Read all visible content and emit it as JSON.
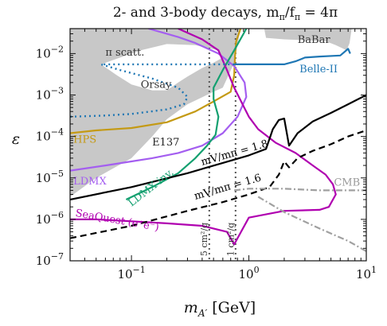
{
  "chart_data": {
    "type": "line",
    "title": "2- and 3-body decays, m",
    "title_sub": "π",
    "title_mid": "/f",
    "title_sub2": "π",
    "title_end": " = 4π",
    "xlabel": "m",
    "xlabel_sub": "A′",
    "xlabel_unit": " [GeV]",
    "ylabel": "ε",
    "x_scale": "log",
    "y_scale": "log",
    "xlim": [
      0.03,
      10
    ],
    "ylim": [
      1e-07,
      0.04
    ],
    "grid": false,
    "x_ticks": [
      {
        "value": 0.1,
        "base": "10",
        "exp": "−1"
      },
      {
        "value": 1,
        "base": "10",
        "exp": "0"
      },
      {
        "value": 10,
        "base": "10",
        "exp": "1"
      }
    ],
    "y_ticks": [
      {
        "value": 1e-07,
        "base": "10",
        "exp": "−7"
      },
      {
        "value": 1e-06,
        "base": "10",
        "exp": "−6"
      },
      {
        "value": 1e-05,
        "base": "10",
        "exp": "−5"
      },
      {
        "value": 0.0001,
        "base": "10",
        "exp": "−4"
      },
      {
        "value": 0.001,
        "base": "10",
        "exp": "−3"
      },
      {
        "value": 0.01,
        "base": "10",
        "exp": "−2"
      }
    ],
    "shaded_regions": [
      {
        "name": "excluded-lower",
        "color": "#c8c8c8",
        "points": [
          [
            0.03,
            3.5e-06
          ],
          [
            0.05,
            1e-05
          ],
          [
            0.1,
            3e-05
          ],
          [
            0.15,
            0.0001
          ],
          [
            0.2,
            0.00026
          ],
          [
            0.3,
            0.0006
          ],
          [
            0.5,
            0.0012
          ],
          [
            0.6,
            0.0015
          ],
          [
            0.75,
            0.006
          ],
          [
            0.85,
            0.04
          ],
          [
            0.03,
            0.04
          ]
        ]
      },
      {
        "name": "excluded-babar",
        "color": "#c8c8c8",
        "points": [
          [
            1.35,
            0.04
          ],
          [
            1.4,
            0.024
          ],
          [
            2,
            0.022
          ],
          [
            3,
            0.021
          ],
          [
            4.5,
            0.02
          ],
          [
            5.5,
            0.016
          ],
          [
            6.8,
            0.012
          ],
          [
            7.2,
            0.018
          ],
          [
            7.5,
            0.04
          ]
        ]
      }
    ],
    "hole_region": {
      "name": "scatt-hole",
      "points": [
        [
          0.055,
          0.0055
        ],
        [
          0.075,
          0.003
        ],
        [
          0.1,
          0.0018
        ],
        [
          0.15,
          0.0013
        ],
        [
          0.2,
          0.0013
        ],
        [
          0.25,
          0.002
        ],
        [
          0.3,
          0.0028
        ],
        [
          0.4,
          0.0045
        ],
        [
          0.5,
          0.006
        ],
        [
          0.6,
          0.008
        ],
        [
          0.55,
          0.012
        ],
        [
          0.35,
          0.016
        ],
        [
          0.2,
          0.017
        ],
        [
          0.12,
          0.012
        ],
        [
          0.08,
          0.008
        ]
      ]
    },
    "series": [
      {
        "key": "hps",
        "color": "#c49a14",
        "dash": "",
        "points": [
          [
            0.03,
            0.00012
          ],
          [
            0.05,
            0.00014
          ],
          [
            0.1,
            0.00016
          ],
          [
            0.2,
            0.00022
          ],
          [
            0.35,
            0.0004
          ],
          [
            0.5,
            0.0007
          ],
          [
            0.7,
            0.0012
          ],
          [
            0.75,
            0.003
          ],
          [
            0.76,
            0.008
          ],
          [
            0.78,
            0.02
          ],
          [
            0.85,
            0.04
          ]
        ]
      },
      {
        "key": "ldmx",
        "color": "#a45ef0",
        "dash": "",
        "points": [
          [
            0.03,
            1.5e-05
          ],
          [
            0.06,
            2e-05
          ],
          [
            0.1,
            2.5e-05
          ],
          [
            0.15,
            3e-05
          ],
          [
            0.25,
            4e-05
          ],
          [
            0.4,
            6e-05
          ],
          [
            0.6,
            0.00012
          ],
          [
            0.8,
            0.0003
          ],
          [
            0.95,
            0.0009
          ],
          [
            0.92,
            0.002
          ],
          [
            0.75,
            0.005
          ],
          [
            0.55,
            0.01
          ],
          [
            0.35,
            0.018
          ],
          [
            0.25,
            0.025
          ],
          [
            0.14,
            0.04
          ]
        ]
      },
      {
        "key": "ldmx-inv",
        "color": "#14a070",
        "dash": "",
        "points": [
          [
            0.09,
            3e-06
          ],
          [
            0.15,
            6e-06
          ],
          [
            0.25,
            1.3e-05
          ],
          [
            0.35,
            3e-05
          ],
          [
            0.44,
            6e-05
          ],
          [
            0.52,
            0.00011
          ],
          [
            0.55,
            0.0003
          ],
          [
            0.5,
            0.0008
          ],
          [
            0.5,
            0.0015
          ],
          [
            0.6,
            0.004
          ],
          [
            0.75,
            0.012
          ],
          [
            0.9,
            0.03
          ],
          [
            0.95,
            0.04
          ]
        ]
      },
      {
        "key": "seaquest",
        "color": "#b000b0",
        "dash": "",
        "points": [
          [
            0.03,
            1e-06
          ],
          [
            0.05,
            1e-06
          ],
          [
            0.1,
            9e-07
          ],
          [
            0.2,
            8e-07
          ],
          [
            0.4,
            7e-07
          ],
          [
            0.65,
            5e-07
          ],
          [
            0.75,
            2.5e-07
          ],
          [
            0.8,
            3.5e-07
          ],
          [
            1.0,
            1.1e-06
          ],
          [
            2,
            1.6e-06
          ],
          [
            4,
            1.7e-06
          ],
          [
            4.8,
            2e-06
          ],
          [
            5.5,
            4e-06
          ],
          [
            5.2,
            7e-06
          ],
          [
            4.5,
            1.2e-05
          ],
          [
            3.5,
            2e-05
          ],
          [
            2.5,
            4e-05
          ],
          [
            1.7,
            7e-05
          ],
          [
            1.2,
            0.00015
          ],
          [
            1.0,
            0.0003
          ],
          [
            0.75,
            0.0015
          ],
          [
            0.65,
            0.004
          ],
          [
            0.55,
            0.012
          ],
          [
            0.4,
            0.022
          ],
          [
            0.25,
            0.04
          ]
        ]
      },
      {
        "key": "ratio-18",
        "color": "#000000",
        "dash": "",
        "points": [
          [
            0.03,
            3e-06
          ],
          [
            0.1,
            6e-06
          ],
          [
            0.3,
            1.3e-05
          ],
          [
            0.6,
            2.3e-05
          ],
          [
            1.0,
            3.5e-05
          ],
          [
            1.4,
            5e-05
          ],
          [
            1.6,
            0.00015
          ],
          [
            1.8,
            0.00025
          ],
          [
            2,
            0.00027
          ],
          [
            2.2,
            6e-05
          ],
          [
            2.6,
            0.00012
          ],
          [
            3.5,
            0.00023
          ],
          [
            5,
            0.00037
          ],
          [
            7,
            0.0006
          ],
          [
            10,
            0.001
          ]
        ]
      },
      {
        "key": "ratio-16",
        "color": "#000000",
        "dash": "8,5",
        "points": [
          [
            0.03,
            3.5e-07
          ],
          [
            0.1,
            7e-07
          ],
          [
            0.3,
            1.6e-06
          ],
          [
            0.6,
            2.6e-06
          ],
          [
            1.0,
            4e-06
          ],
          [
            1.5,
            6e-06
          ],
          [
            1.8,
            1.2e-05
          ],
          [
            2,
            2.5e-05
          ],
          [
            2.2,
            1.8e-05
          ],
          [
            2.6,
            3e-05
          ],
          [
            3.5,
            4.5e-05
          ],
          [
            5,
            6.5e-05
          ],
          [
            7,
            0.0001
          ],
          [
            10,
            0.00014
          ]
        ]
      },
      {
        "key": "belle2",
        "color": "#1f77b4",
        "dash": "",
        "points": [
          [
            0.75,
            0.0055
          ],
          [
            1.2,
            0.0055
          ],
          [
            2,
            0.0055
          ],
          [
            2.5,
            0.0065
          ],
          [
            3,
            0.008
          ],
          [
            4,
            0.0085
          ],
          [
            6,
            0.009
          ],
          [
            7,
            0.013
          ],
          [
            7.3,
            0.01
          ]
        ]
      },
      {
        "key": "belle2-dotted",
        "color": "#1f77b4",
        "dash": "2,4",
        "points": [
          [
            0.03,
            0.0003
          ],
          [
            0.06,
            0.00032
          ],
          [
            0.1,
            0.00035
          ],
          [
            0.2,
            0.00045
          ],
          [
            0.28,
            0.0006
          ],
          [
            0.3,
            0.0009
          ],
          [
            0.25,
            0.0015
          ],
          [
            0.15,
            0.0025
          ],
          [
            0.08,
            0.004
          ],
          [
            0.055,
            0.0055
          ],
          [
            0.1,
            0.0055
          ],
          [
            0.3,
            0.0055
          ],
          [
            0.75,
            0.0055
          ]
        ]
      },
      {
        "key": "cmb",
        "color": "#a0a0a0",
        "dash": "8,3,2,3",
        "points": [
          [
            0.75,
            5e-06
          ],
          [
            1,
            5.5e-06
          ],
          [
            2,
            5.5e-06
          ],
          [
            4,
            5e-06
          ],
          [
            7,
            5e-06
          ],
          [
            10,
            5e-06
          ]
        ]
      },
      {
        "key": "cmb-tail",
        "color": "#a0a0a0",
        "dash": "8,3,2,3",
        "points": [
          [
            1.2,
            3.5e-06
          ],
          [
            2,
            1.5e-06
          ],
          [
            4,
            6e-07
          ],
          [
            7,
            3e-07
          ],
          [
            10,
            1.7e-07
          ]
        ]
      }
    ],
    "vlines": [
      {
        "key": "vline-5cm",
        "x": 0.46,
        "color": "#555555",
        "dash": "2,4"
      },
      {
        "key": "vline-1cm",
        "x": 0.77,
        "color": "#555555",
        "dash": "2,4"
      }
    ],
    "annotations": [
      {
        "key": "babar",
        "text": "BaBar",
        "x": 2.6,
        "y": 0.018,
        "color": "#333333"
      },
      {
        "key": "belle-ii",
        "text": "Belle-II",
        "x": 2.7,
        "y": 0.0035,
        "color": "#1f77b4"
      },
      {
        "key": "pi-scatt",
        "text": "π scatt.",
        "x": 0.06,
        "y": 0.009,
        "color": "#333333"
      },
      {
        "key": "orsay",
        "text": "Orsay",
        "x": 0.12,
        "y": 0.0015,
        "color": "#333333"
      },
      {
        "key": "hps",
        "text": "HPS",
        "x": 0.032,
        "y": 7e-05,
        "color": "#c49a14"
      },
      {
        "key": "e137",
        "text": "E137",
        "x": 0.15,
        "y": 6e-05,
        "color": "#222222"
      },
      {
        "key": "ldmx",
        "text": "LDMX",
        "x": 0.032,
        "y": 7e-06,
        "color": "#a45ef0"
      },
      {
        "key": "cmb",
        "text": "CMB",
        "x": 5.3,
        "y": 6.5e-06,
        "color": "#9a9a9a"
      }
    ],
    "rotated_labels": [
      {
        "key": "ldmx-inv",
        "text": "LDMX inv.",
        "x": 0.1,
        "y": 2e-06,
        "angle": -38,
        "color": "#14a070"
      },
      {
        "key": "seaquest",
        "text": "SeaQuest (e⁺e⁻)",
        "x": 0.033,
        "y": 1.2e-06,
        "angle": 10,
        "color": "#b000b0"
      },
      {
        "key": "ratio-18",
        "text": "mV/mπ = 1.8",
        "x": 0.4,
        "y": 2e-05,
        "angle": -16,
        "color": "#000000"
      },
      {
        "key": "ratio-16",
        "text": "mV/mπ = 1.6",
        "x": 0.35,
        "y": 3e-06,
        "angle": -16,
        "color": "#000000"
      },
      {
        "key": "vline-5cm",
        "text": "5 cm²/g",
        "x": 0.44,
        "y": 1.3e-07,
        "angle": -90,
        "color": "#333333"
      },
      {
        "key": "vline-1cm",
        "text": "1 cm²/g",
        "x": 0.74,
        "y": 1.3e-07,
        "angle": -90,
        "color": "#333333"
      }
    ]
  }
}
